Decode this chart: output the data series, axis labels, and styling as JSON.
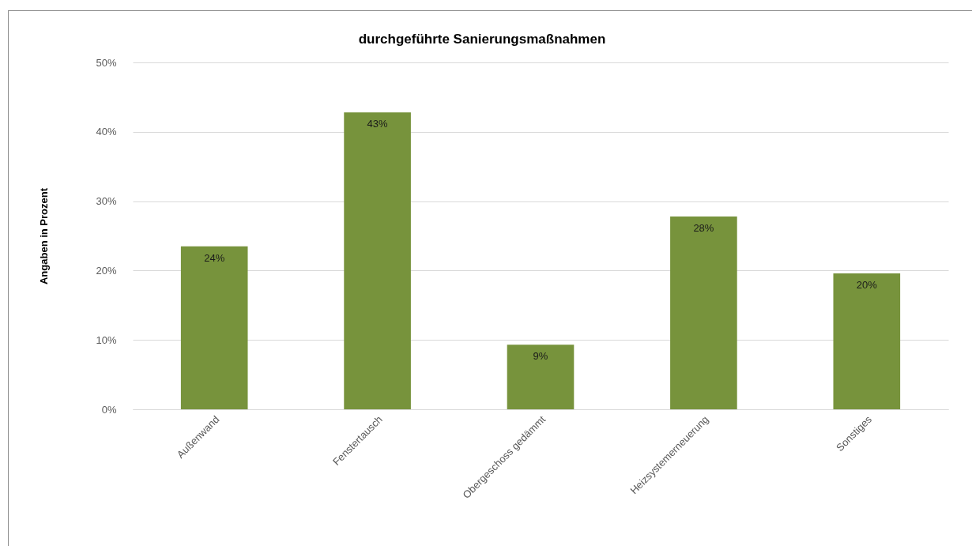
{
  "chart_data": {
    "type": "bar",
    "title": "durchgeführte Sanierungsmaßnahmen",
    "ylabel": "Angaben in Prozent",
    "categories": [
      "Außenwand",
      "Fenstertausch",
      "Obergeschoss gedämmt",
      "Heizsystemerneuerung",
      "Sonstiges"
    ],
    "values": [
      23.5,
      42.8,
      9.3,
      27.8,
      19.6
    ],
    "value_labels": [
      "24%",
      "43%",
      "9%",
      "28%",
      "20%"
    ],
    "color": "#77933c",
    "ylim": [
      0,
      50
    ],
    "yticks": [
      {
        "value": 0,
        "label": "0%"
      },
      {
        "value": 10,
        "label": "10%"
      },
      {
        "value": 20,
        "label": "20%"
      },
      {
        "value": 30,
        "label": "30%"
      },
      {
        "value": 40,
        "label": "40%"
      },
      {
        "value": 50,
        "label": "50%"
      }
    ],
    "grid": "y"
  }
}
